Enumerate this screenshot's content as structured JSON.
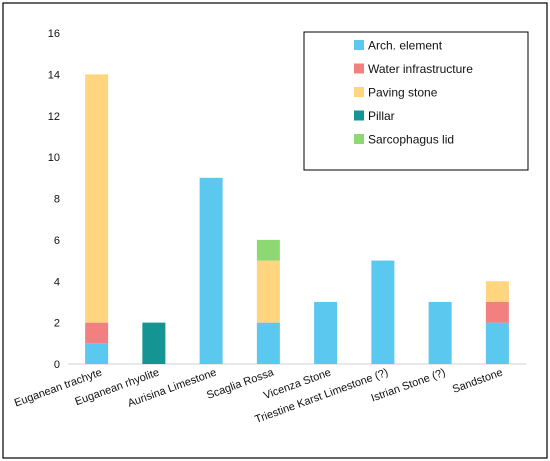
{
  "chart_data": {
    "type": "bar",
    "stacked": true,
    "title": "",
    "xlabel": "",
    "ylabel": "",
    "ylim": [
      0,
      16
    ],
    "yticks": [
      0,
      2,
      4,
      6,
      8,
      10,
      12,
      14,
      16
    ],
    "grid": false,
    "legend_position": "top-right",
    "categories": [
      "Euganean trachyte",
      "Euganean rhyolite",
      "Aurisina Limestone",
      "Scaglia Rossa",
      "Vicenza Stone",
      "Triestine Karst Limestone (?)",
      "Istrian Stone (?)",
      "Sandstone"
    ],
    "series": [
      {
        "name": "Arch. element",
        "color": "#5BC8EF",
        "values": [
          1,
          0,
          9,
          2,
          3,
          5,
          3,
          2
        ]
      },
      {
        "name": "Water infrastructure",
        "color": "#F28080",
        "values": [
          1,
          0,
          0,
          0,
          0,
          0,
          0,
          1
        ]
      },
      {
        "name": "Paving stone",
        "color": "#FFD580",
        "values": [
          12,
          0,
          0,
          3,
          0,
          0,
          0,
          1
        ]
      },
      {
        "name": "Pillar",
        "color": "#149493",
        "values": [
          0,
          2,
          0,
          0,
          0,
          0,
          0,
          0
        ]
      },
      {
        "name": "Sarcophagus lid",
        "color": "#8ED873",
        "values": [
          0,
          0,
          0,
          1,
          0,
          0,
          0,
          0
        ]
      }
    ]
  }
}
